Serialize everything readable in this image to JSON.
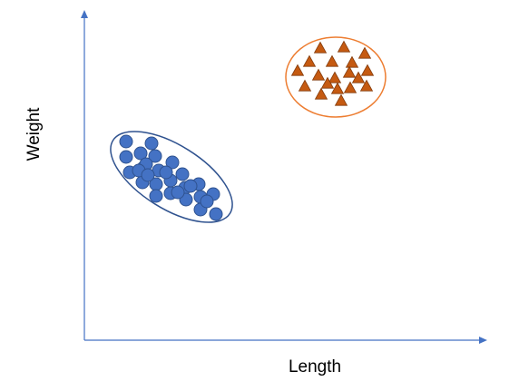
{
  "axes": {
    "x_label": "Length",
    "y_label": "Weight",
    "color": "#4472C4"
  },
  "clusters": [
    {
      "name": "circles",
      "shape": "circle",
      "fill": "#4472C4",
      "stroke": "#2F528F",
      "boundary": "#2F528F",
      "count": 29
    },
    {
      "name": "triangles",
      "shape": "triangle",
      "fill": "#C55A11",
      "stroke": "#843C0C",
      "boundary": "#ED7D31",
      "count": 19
    }
  ]
}
